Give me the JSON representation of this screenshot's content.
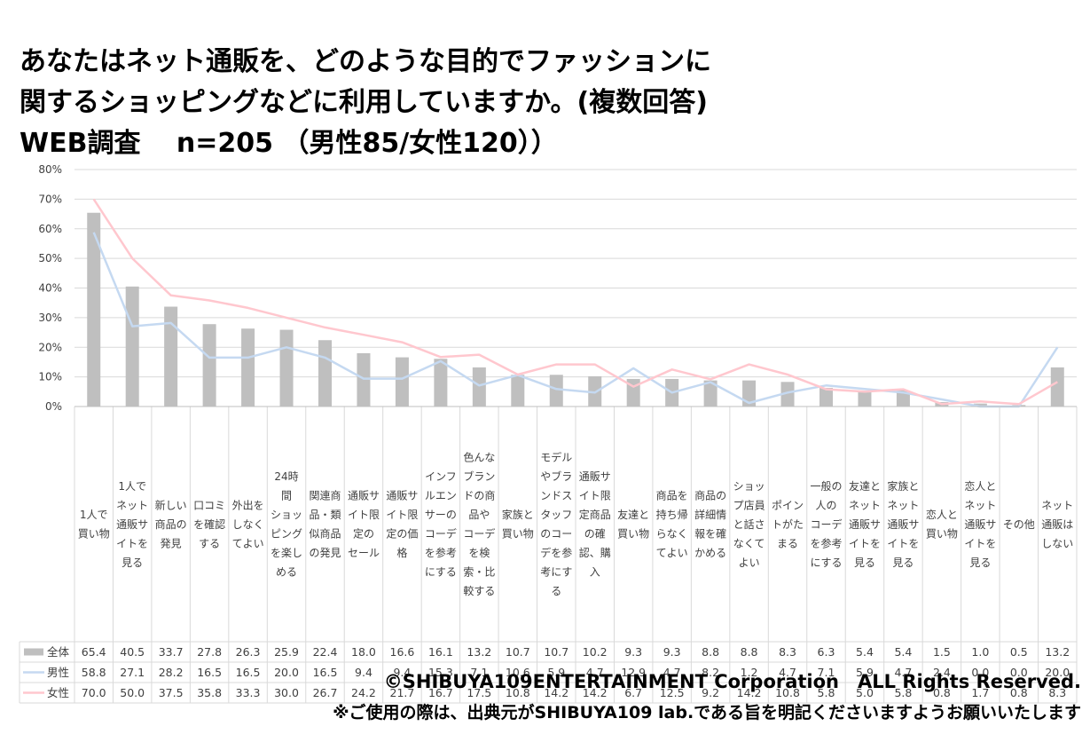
{
  "title_lines": [
    "あなたはネット通販を、どのような目的でファッションに",
    "関するショッピングなどに利用していますか。(複数回答)",
    "WEB調査　 n=205 （男性85/女性120））"
  ],
  "footer": {
    "copyright": "©SHIBUYA109ENTERTAINMENT Corporation　ALL Rights Reserved.",
    "note": "※ご使用の際は、出典元がSHIBUYA109 lab.である旨を明記くださいますようお願いいたします"
  },
  "colors": {
    "total": "#bfbfbf",
    "male": "#c5d9f1",
    "female": "#ffc7ce",
    "grid": "#d9d9d9",
    "table": "#d9d9d9"
  },
  "chart_data": {
    "type": "bar",
    "ylim": [
      0,
      80
    ],
    "yticks": [
      "0%",
      "10%",
      "20%",
      "30%",
      "40%",
      "50%",
      "60%",
      "70%",
      "80%"
    ],
    "categories": [
      [
        "1人で",
        "買い物"
      ],
      [
        "1人で",
        "ネット",
        "通販サ",
        "イトを",
        "見る"
      ],
      [
        "新しい",
        "商品の",
        "発見"
      ],
      [
        "口コミ",
        "を確認",
        "する"
      ],
      [
        "外出を",
        "しなく",
        "てよい"
      ],
      [
        "24時",
        "間",
        "ショッ",
        "ピング",
        "を楽し",
        "める"
      ],
      [
        "関連商",
        "品・類",
        "似商品",
        "の発見"
      ],
      [
        "通販サ",
        "イト限",
        "定の",
        "セール"
      ],
      [
        "通販サ",
        "イト限",
        "定の価",
        "格"
      ],
      [
        "インフ",
        "ルエン",
        "サーの",
        "コーデ",
        "を参考",
        "にする"
      ],
      [
        "色んな",
        "ブラン",
        "ドの商",
        "品や",
        "コーデ",
        "を検",
        "索・比",
        "較する"
      ],
      [
        "家族と",
        "買い物"
      ],
      [
        "モデル",
        "やブラ",
        "ンドス",
        "タッフ",
        "のコー",
        "デを参",
        "考にす",
        "る"
      ],
      [
        "通販サ",
        "イト限",
        "定商品",
        "の確",
        "認、購",
        "入"
      ],
      [
        "友達と",
        "買い物"
      ],
      [
        "商品を",
        "持ち帰",
        "らなく",
        "てよい"
      ],
      [
        "商品の",
        "詳細情",
        "報を確",
        "かめる"
      ],
      [
        "ショッ",
        "プ店員",
        "と話さ",
        "なくて",
        "よい"
      ],
      [
        "ポイン",
        "トがた",
        "まる"
      ],
      [
        "一般の",
        "人の",
        "コーデ",
        "を参考",
        "にする"
      ],
      [
        "友達と",
        "ネット",
        "通販サ",
        "イトを",
        "見る"
      ],
      [
        "家族と",
        "ネット",
        "通販サ",
        "イトを",
        "見る"
      ],
      [
        "恋人と",
        "買い物"
      ],
      [
        "恋人と",
        "ネット",
        "通販サ",
        "イトを",
        "見る"
      ],
      [
        "その他"
      ],
      [
        "ネット",
        "通販は",
        "しない"
      ]
    ],
    "series": [
      {
        "name": "全体",
        "type": "bar",
        "values": [
          65.4,
          40.5,
          33.7,
          27.8,
          26.3,
          25.9,
          22.4,
          18.0,
          16.6,
          16.1,
          13.2,
          10.7,
          10.7,
          10.2,
          9.3,
          9.3,
          8.8,
          8.8,
          8.3,
          6.3,
          5.4,
          5.4,
          1.5,
          1.0,
          0.5,
          13.2
        ]
      },
      {
        "name": "男性",
        "type": "line",
        "values": [
          58.8,
          27.1,
          28.2,
          16.5,
          16.5,
          20.0,
          16.5,
          9.4,
          9.4,
          15.3,
          7.1,
          10.6,
          5.9,
          4.7,
          12.9,
          4.7,
          8.2,
          1.2,
          4.7,
          7.1,
          5.9,
          4.7,
          2.4,
          0.0,
          0.0,
          20.0
        ]
      },
      {
        "name": "女性",
        "type": "line",
        "values": [
          70.0,
          50.0,
          37.5,
          35.8,
          33.3,
          30.0,
          26.7,
          24.2,
          21.7,
          16.7,
          17.5,
          10.8,
          14.2,
          14.2,
          6.7,
          12.5,
          9.2,
          14.2,
          10.8,
          5.8,
          5.0,
          5.8,
          0.8,
          1.7,
          0.8,
          8.3
        ]
      }
    ],
    "grid": true,
    "legend": "data-table"
  }
}
